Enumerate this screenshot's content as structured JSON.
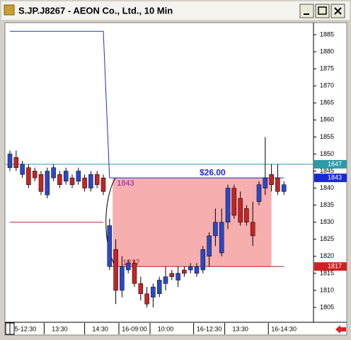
{
  "window": {
    "title": "S.JP.J8267 - AEON Co., Ltd., 10 Min"
  },
  "chart_data": {
    "type": "candlestick",
    "up_color": "#2a48c8",
    "down_color": "#c42424",
    "open": [
      1846,
      1849,
      1844,
      1846,
      1845,
      1844,
      1838,
      1843,
      1844,
      1842,
      1843,
      1842,
      1843,
      1840,
      1844,
      1843,
      1817,
      1822,
      1810,
      1816,
      1818,
      1812,
      1809,
      1808,
      1809,
      1812,
      1815,
      1813,
      1816,
      1816,
      1815,
      1816,
      1820,
      1826,
      1821,
      1830,
      1840,
      1837,
      1834,
      1830,
      1836,
      1840,
      1844,
      1843,
      1839
    ],
    "high": [
      1851,
      1851,
      1848,
      1847,
      1846,
      1845,
      1846,
      1847,
      1845,
      1846,
      1844,
      1846,
      1844,
      1845,
      1845,
      1844,
      1831,
      1825,
      1820,
      1819,
      1819,
      1814,
      1811,
      1812,
      1814,
      1817,
      1816,
      1817,
      1817,
      1818,
      1818,
      1823,
      1827,
      1834,
      1834,
      1841,
      1841,
      1839,
      1835,
      1836,
      1842,
      1855,
      1847,
      1847,
      1842
    ],
    "low": [
      1845,
      1845,
      1843,
      1840,
      1842,
      1838,
      1837,
      1842,
      1840,
      1841,
      1840,
      1841,
      1839,
      1839,
      1840,
      1838,
      1816,
      1806,
      1808,
      1815,
      1811,
      1807,
      1805,
      1805,
      1808,
      1810,
      1813,
      1811,
      1814,
      1815,
      1814,
      1815,
      1817,
      1823,
      1820,
      1828,
      1831,
      1829,
      1829,
      1823,
      1835,
      1838,
      1839,
      1838,
      1838
    ],
    "close": [
      1850,
      1846,
      1847,
      1841,
      1843,
      1839,
      1845,
      1846,
      1841,
      1845,
      1841,
      1845,
      1840,
      1844,
      1841,
      1839,
      1829,
      1810,
      1817,
      1818,
      1812,
      1809,
      1806,
      1811,
      1813,
      1814,
      1814,
      1815,
      1815,
      1817,
      1817,
      1822,
      1826,
      1830,
      1830,
      1840,
      1832,
      1830,
      1830,
      1826,
      1841,
      1843,
      1841,
      1839,
      1841
    ],
    "series": [
      {
        "color": "#2030c0",
        "values": [
          1886,
          1886,
          1886,
          1886,
          1886,
          1886,
          1886,
          1886,
          1886,
          1886,
          1886,
          1886,
          1886,
          1886,
          1886,
          1886,
          1843,
          1843,
          1843,
          1843,
          1843,
          1843,
          1843,
          1843,
          1843,
          1843,
          1843,
          1843,
          1843,
          1843,
          1843,
          1843,
          1843,
          1843,
          1843,
          1843,
          1843,
          1843,
          1843,
          1843,
          1843,
          1843,
          1843,
          1843,
          1843
        ]
      },
      {
        "color": "#c02020",
        "values": [
          1830,
          1830,
          1830,
          1830,
          1830,
          1830,
          1830,
          1830,
          1830,
          1830,
          1830,
          1830,
          1830,
          1830,
          1830,
          1830,
          null,
          null,
          null,
          null,
          null,
          null,
          null,
          null,
          null,
          null,
          null,
          null,
          null,
          null,
          null,
          null,
          null,
          null,
          null,
          null,
          null,
          null,
          null,
          null,
          null,
          null,
          null,
          null,
          null
        ]
      },
      {
        "color": "#c02020",
        "values": [
          null,
          null,
          null,
          null,
          null,
          null,
          null,
          null,
          null,
          null,
          null,
          null,
          null,
          null,
          null,
          null,
          1817,
          1817,
          1817,
          1817,
          1817,
          1817,
          1817,
          1817,
          1817,
          1817,
          1817,
          1817,
          1817,
          1817,
          1817,
          1817,
          1817,
          1817,
          1817,
          1817,
          1817,
          1817,
          1817,
          1817,
          1817,
          1817,
          1817,
          1817,
          1817
        ]
      }
    ],
    "levels": [
      {
        "value": 1847,
        "color": "#2a9aa8",
        "line": true
      },
      {
        "value": 1843,
        "color": "#1a2ad0"
      },
      {
        "value": 1817,
        "color": "#d02020"
      }
    ],
    "zone": {
      "from": 16.5,
      "to": 42,
      "low": 1817,
      "high": 1843,
      "color": "#f5a0a0",
      "label": "$26.00"
    },
    "ylim": [
      1805,
      1885
    ],
    "yticks": [
      1805,
      1810,
      1815,
      1820,
      1825,
      1830,
      1835,
      1840,
      1845,
      1850,
      1855,
      1860,
      1865,
      1870,
      1875,
      1880,
      1885
    ],
    "xticks": [
      {
        "value": 2.5,
        "label": "5-12:30"
      },
      {
        "value": 8,
        "label": "13:30"
      },
      {
        "value": 14.5,
        "label": "14:30"
      },
      {
        "value": 20,
        "label": "16-09:00"
      },
      {
        "value": 25,
        "label": "10:00"
      },
      {
        "value": 32,
        "label": "16-12:30"
      },
      {
        "value": 37,
        "label": "13:30"
      },
      {
        "value": 44,
        "label": "16-14:30"
      }
    ]
  }
}
